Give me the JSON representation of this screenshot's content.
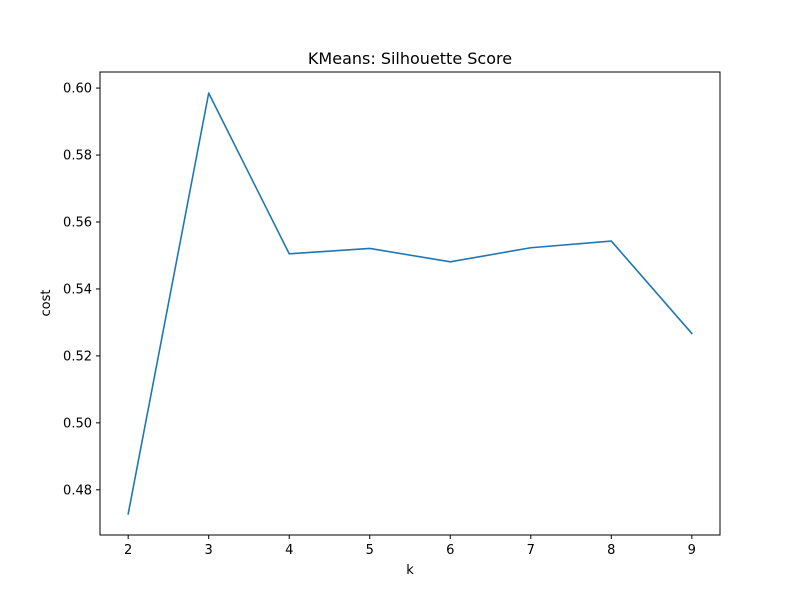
{
  "chart_data": {
    "type": "line",
    "title": "KMeans: Silhouette Score",
    "xlabel": "k",
    "ylabel": "cost",
    "x": [
      2,
      3,
      4,
      5,
      6,
      7,
      8,
      9
    ],
    "series": [
      {
        "values": [
          0.4728,
          0.5985,
          0.5505,
          0.5521,
          0.5481,
          0.5523,
          0.5543,
          0.5267
        ],
        "color": "#1f77b4"
      }
    ],
    "xlim": [
      1.65,
      9.35
    ],
    "ylim": [
      0.4665,
      0.6048
    ],
    "xticks": [
      2,
      3,
      4,
      5,
      6,
      7,
      8,
      9
    ],
    "xtick_labels": [
      "2",
      "3",
      "4",
      "5",
      "6",
      "7",
      "8",
      "9"
    ],
    "yticks": [
      0.48,
      0.5,
      0.52,
      0.54,
      0.56,
      0.58,
      0.6
    ],
    "ytick_labels": [
      "0.48",
      "0.50",
      "0.52",
      "0.54",
      "0.56",
      "0.58",
      "0.60"
    ],
    "grid": false,
    "legend": false
  }
}
